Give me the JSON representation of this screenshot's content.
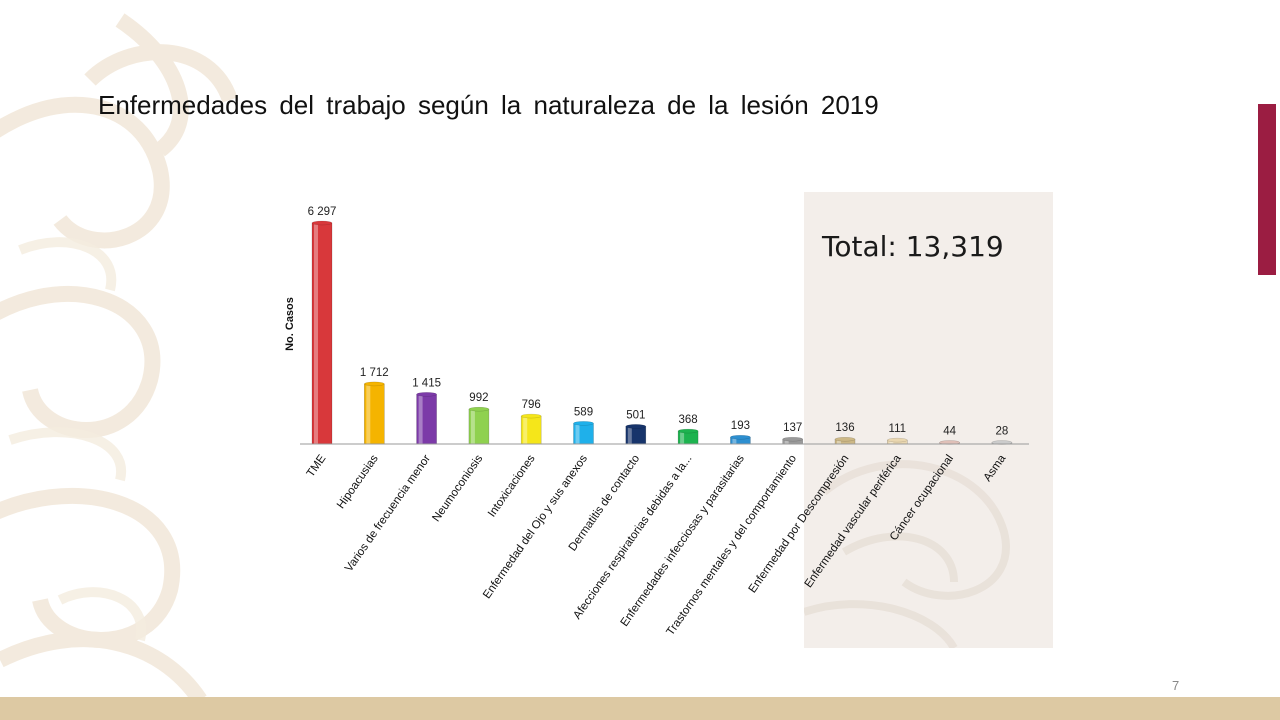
{
  "slide": {
    "title": "Enfermedades del trabajo según la naturaleza de la lesión 2019",
    "total_label": "Total:",
    "total_value": "13,319",
    "page_number": "7",
    "accent_color": "#9b1d42",
    "band_color": "#ddc9a3"
  },
  "chart_data": {
    "type": "bar",
    "title": "",
    "xlabel": "",
    "ylabel": "No. Casos",
    "ylim": [
      0,
      6297
    ],
    "grid": false,
    "legend": "none",
    "categories": [
      "TME",
      "Hipoacusias",
      "Varios de frecuencia menor",
      "Neumoconiosis",
      "Intoxicaciones",
      "Enfermedad del Ojo y sus anexos",
      "Dermatitis de contacto",
      "Afecciones respiratorias debidas a la...",
      "Enfermedades infecciosas y parasitarias",
      "Trastornos mentales y del comportamiento",
      "Enfermedad por Descompresión",
      "Enfermedad vascular periférica",
      "Cáncer ocupacional",
      "Asma"
    ],
    "values": [
      6297,
      1712,
      1415,
      992,
      796,
      589,
      501,
      368,
      193,
      137,
      136,
      111,
      44,
      28
    ],
    "value_labels": [
      "6 297",
      "1 712",
      "1 415",
      "992",
      "796",
      "589",
      "501",
      "368",
      "193",
      "137",
      "136",
      "111",
      "44",
      "28"
    ],
    "colors": [
      "#d8383b",
      "#f5b400",
      "#7c3aa8",
      "#8fd14f",
      "#f5e61a",
      "#1fb0ea",
      "#17346b",
      "#1db34f",
      "#2d8fd0",
      "#9a9a9a",
      "#cdb886",
      "#ead7b0",
      "#e0c0b8",
      "#cccccc"
    ]
  }
}
